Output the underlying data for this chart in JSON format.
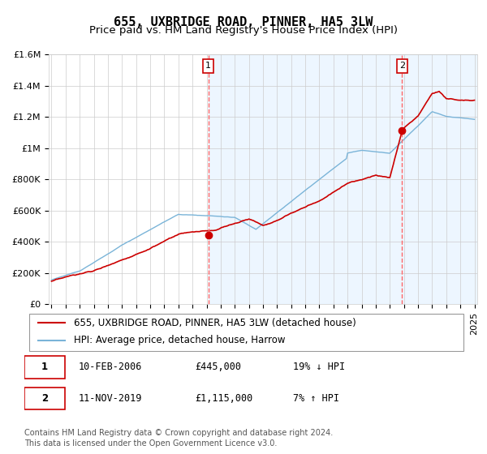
{
  "title": "655, UXBRIDGE ROAD, PINNER, HA5 3LW",
  "subtitle": "Price paid vs. HM Land Registry's House Price Index (HPI)",
  "xlabel": "",
  "ylabel": "",
  "ylim": [
    0,
    1600000
  ],
  "yticks": [
    0,
    200000,
    400000,
    600000,
    800000,
    1000000,
    1200000,
    1400000,
    1600000
  ],
  "ytick_labels": [
    "£0",
    "£200K",
    "£400K",
    "£600K",
    "£800K",
    "£1M",
    "£1.2M",
    "£1.4M",
    "£1.6M"
  ],
  "sale1_date": 2006.12,
  "sale1_price": 445000,
  "sale1_label": "1",
  "sale2_date": 2019.87,
  "sale2_price": 1115000,
  "sale2_label": "2",
  "line_color_red": "#cc0000",
  "line_color_blue": "#7ab4d8",
  "dot_color": "#cc0000",
  "vline_color": "#ff6666",
  "bg_shaded_color": "#ddeeff",
  "legend_label_red": "655, UXBRIDGE ROAD, PINNER, HA5 3LW (detached house)",
  "legend_label_blue": "HPI: Average price, detached house, Harrow",
  "table_row1": [
    "1",
    "10-FEB-2006",
    "£445,000",
    "19% ↓ HPI"
  ],
  "table_row2": [
    "2",
    "11-NOV-2019",
    "£1,115,000",
    "7% ↑ HPI"
  ],
  "footer1": "Contains HM Land Registry data © Crown copyright and database right 2024.",
  "footer2": "This data is licensed under the Open Government Licence v3.0.",
  "title_fontsize": 11,
  "subtitle_fontsize": 9.5,
  "tick_fontsize": 8,
  "legend_fontsize": 8.5,
  "table_fontsize": 8.5,
  "footer_fontsize": 7
}
